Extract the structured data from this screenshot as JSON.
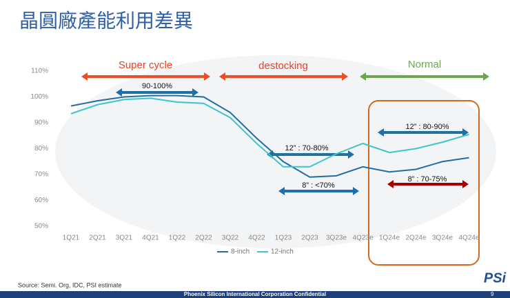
{
  "chart_data": {
    "type": "line",
    "title": "晶圓廠產能利用差異",
    "categories": [
      "1Q21",
      "2Q21",
      "3Q21",
      "4Q21",
      "1Q22",
      "2Q22",
      "3Q22",
      "4Q22",
      "1Q23",
      "2Q23",
      "3Q23e",
      "4Q23e",
      "1Q24e",
      "2Q24e",
      "3Q24e",
      "4Q24e"
    ],
    "series": [
      {
        "name": "8-inch",
        "color": "#1f6ea8",
        "values": [
          96.5,
          98.5,
          100,
          100.5,
          100.5,
          100,
          94,
          84,
          75,
          69,
          69.5,
          73,
          71,
          72,
          75,
          76.5
        ]
      },
      {
        "name": "12-inch",
        "color": "#3ec6c6",
        "values": [
          93.5,
          97,
          99,
          99.5,
          98,
          97.5,
          92,
          82,
          73,
          73,
          78,
          82,
          78.5,
          80,
          82.5,
          85.5
        ]
      }
    ],
    "ylim": [
      50,
      110
    ],
    "yticks": [
      {
        "value": 50,
        "label": "50%"
      },
      {
        "value": 60,
        "label": "60%"
      },
      {
        "value": 70,
        "label": "70%"
      },
      {
        "value": 80,
        "label": "80%"
      },
      {
        "value": 90,
        "label": "90%"
      },
      {
        "value": 100,
        "label": "100%"
      },
      {
        "value": 110,
        "label": "110%"
      }
    ],
    "grid": false,
    "annotations": [
      "Super cycle",
      "destocking",
      "Normal",
      "90-100%",
      "12” : 70-80%",
      "8” :  <70%",
      "12” : 80-90%",
      "8” : 70-75%"
    ],
    "source": "Source: Semi. Org, IDC, PSI estimate",
    "footer": "Phoenix Silicon International Corporation Confidential",
    "page": "9",
    "logo": "PSi"
  }
}
